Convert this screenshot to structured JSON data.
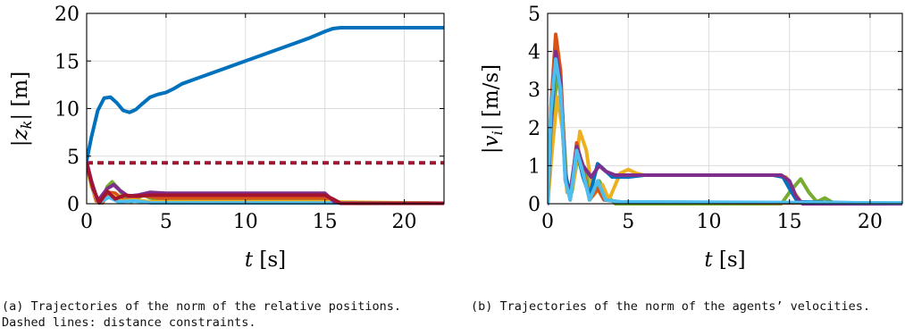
{
  "colors": {
    "blue": "#0072BD",
    "orange": "#D95319",
    "yellow": "#EDB120",
    "purple": "#7E2F8E",
    "green": "#77AC30",
    "cyan": "#4DBEEE",
    "red": "#A2142F",
    "grid": "#dcdcdc"
  },
  "captions": {
    "a": "(a) Trajectories of the norm of the relative positions. Dashed lines: distance constraints.",
    "b": "(b) Trajectories of the norm of the agents’ velocities."
  },
  "chart_data": [
    {
      "type": "line",
      "title": "",
      "xlabel": "t [s]",
      "ylabel": "|z_k| [m]",
      "xlim": [
        0,
        22.5
      ],
      "ylim": [
        0,
        20
      ],
      "xticks": [
        0,
        5,
        10,
        15,
        20
      ],
      "yticks": [
        0,
        5,
        10,
        15,
        20
      ],
      "grid": true,
      "series": [
        {
          "color": "#0072BD",
          "width": 4,
          "points": [
            [
              0,
              4.5
            ],
            [
              0.3,
              7
            ],
            [
              0.7,
              9.8
            ],
            [
              1.1,
              11.1
            ],
            [
              1.5,
              11.2
            ],
            [
              1.9,
              10.6
            ],
            [
              2.3,
              9.8
            ],
            [
              2.7,
              9.6
            ],
            [
              3.1,
              9.9
            ],
            [
              3.5,
              10.5
            ],
            [
              4,
              11.2
            ],
            [
              4.5,
              11.5
            ],
            [
              5,
              11.7
            ],
            [
              5.5,
              12.1
            ],
            [
              6,
              12.6
            ],
            [
              7,
              13.2
            ],
            [
              8,
              13.8
            ],
            [
              9,
              14.4
            ],
            [
              10,
              15
            ],
            [
              11,
              15.6
            ],
            [
              12,
              16.2
            ],
            [
              13,
              16.8
            ],
            [
              14,
              17.4
            ],
            [
              15,
              18.1
            ],
            [
              15.5,
              18.4
            ],
            [
              16,
              18.5
            ],
            [
              22.5,
              18.5
            ]
          ]
        },
        {
          "color": "#A2142F",
          "width": 4,
          "dash": true,
          "points": [
            [
              0,
              4.3
            ],
            [
              22.5,
              4.3
            ]
          ]
        },
        {
          "color": "#77AC30",
          "width": 4,
          "points": [
            [
              0,
              4.3
            ],
            [
              0.3,
              2.2
            ],
            [
              0.6,
              0.5
            ],
            [
              0.9,
              0.1
            ],
            [
              1.3,
              1.8
            ],
            [
              1.6,
              2.3
            ],
            [
              2,
              1.6
            ],
            [
              2.4,
              0.6
            ],
            [
              2.8,
              0.2
            ],
            [
              3.2,
              0.6
            ],
            [
              3.6,
              0.9
            ],
            [
              4,
              0.6
            ],
            [
              4.5,
              0.4
            ],
            [
              15,
              0.4
            ],
            [
              15.5,
              0.1
            ],
            [
              22.5,
              0.05
            ]
          ]
        },
        {
          "color": "#D95319",
          "width": 4,
          "points": [
            [
              0,
              4.1
            ],
            [
              0.3,
              2
            ],
            [
              0.6,
              0.3
            ],
            [
              1,
              0.1
            ],
            [
              1.4,
              1.2
            ],
            [
              1.8,
              1.1
            ],
            [
              2.3,
              0.4
            ],
            [
              3,
              0.6
            ],
            [
              3.5,
              0.9
            ],
            [
              4.5,
              0.6
            ],
            [
              15,
              0.6
            ],
            [
              15.5,
              0.1
            ],
            [
              22.5,
              0.05
            ]
          ]
        },
        {
          "color": "#EDB120",
          "width": 4,
          "points": [
            [
              0,
              4
            ],
            [
              0.3,
              1.8
            ],
            [
              0.7,
              0.2
            ],
            [
              1.2,
              0.5
            ],
            [
              1.6,
              0.9
            ],
            [
              2.2,
              0.3
            ],
            [
              3,
              0.4
            ],
            [
              4,
              0.2
            ],
            [
              15,
              0.2
            ],
            [
              22.5,
              0.05
            ]
          ]
        },
        {
          "color": "#4DBEEE",
          "width": 4,
          "points": [
            [
              0,
              4.2
            ],
            [
              0.4,
              1.5
            ],
            [
              0.8,
              0.1
            ],
            [
              1.4,
              0.7
            ],
            [
              2,
              0.2
            ],
            [
              3,
              0.3
            ],
            [
              4,
              0.1
            ],
            [
              22.5,
              0.05
            ]
          ]
        },
        {
          "color": "#7E2F8E",
          "width": 4,
          "points": [
            [
              0,
              4.4
            ],
            [
              0.3,
              2.4
            ],
            [
              0.7,
              0.3
            ],
            [
              1.3,
              1.6
            ],
            [
              1.7,
              2
            ],
            [
              2.1,
              1.4
            ],
            [
              2.6,
              0.8
            ],
            [
              3.2,
              0.9
            ],
            [
              4,
              1.2
            ],
            [
              5,
              1.1
            ],
            [
              15,
              1.1
            ],
            [
              15.6,
              0.2
            ],
            [
              16,
              0.05
            ],
            [
              22.5,
              0.05
            ]
          ]
        },
        {
          "color": "#A2142F",
          "width": 4,
          "points": [
            [
              0,
              4.2
            ],
            [
              0.4,
              1.6
            ],
            [
              0.8,
              0.1
            ],
            [
              1.3,
              1.3
            ],
            [
              1.8,
              0.5
            ],
            [
              2.4,
              0.9
            ],
            [
              3,
              0.8
            ],
            [
              4,
              0.9
            ],
            [
              15,
              0.9
            ],
            [
              15.5,
              0.5
            ],
            [
              16,
              0.05
            ],
            [
              22.5,
              0.05
            ]
          ]
        }
      ]
    },
    {
      "type": "line",
      "title": "",
      "xlabel": "t [s]",
      "ylabel": "|v_i| [m/s]",
      "xlim": [
        0,
        22
      ],
      "ylim": [
        0,
        5
      ],
      "xticks": [
        0,
        5,
        10,
        15,
        20
      ],
      "yticks": [
        0,
        1,
        2,
        3,
        4,
        5
      ],
      "grid": true,
      "series": [
        {
          "color": "#77AC30",
          "width": 4,
          "points": [
            [
              0,
              0
            ],
            [
              0.3,
              2
            ],
            [
              0.6,
              3.5
            ],
            [
              0.9,
              2.5
            ],
            [
              1.2,
              0.4
            ],
            [
              1.5,
              0.3
            ],
            [
              1.9,
              1.3
            ],
            [
              2.3,
              0.9
            ],
            [
              2.7,
              0.2
            ],
            [
              3.2,
              0.6
            ],
            [
              3.7,
              0.2
            ],
            [
              4.2,
              0
            ],
            [
              14.5,
              0
            ],
            [
              15,
              0.3
            ],
            [
              15.7,
              0.65
            ],
            [
              16.2,
              0.3
            ],
            [
              16.7,
              0.05
            ],
            [
              17.2,
              0.15
            ],
            [
              17.8,
              0
            ],
            [
              22,
              0
            ]
          ]
        },
        {
          "color": "#EDB120",
          "width": 4,
          "points": [
            [
              0,
              0
            ],
            [
              0.3,
              1.5
            ],
            [
              0.6,
              2.8
            ],
            [
              0.9,
              2
            ],
            [
              1.2,
              0.3
            ],
            [
              1.6,
              0.5
            ],
            [
              2,
              1.9
            ],
            [
              2.4,
              1.4
            ],
            [
              2.8,
              0.2
            ],
            [
              3.4,
              0.5
            ],
            [
              3.8,
              0.1
            ],
            [
              4.5,
              0.8
            ],
            [
              5,
              0.9
            ],
            [
              5.5,
              0.8
            ],
            [
              6,
              0.75
            ],
            [
              14.2,
              0.75
            ],
            [
              14.8,
              0.7
            ],
            [
              15.3,
              0.3
            ],
            [
              15.8,
              0
            ],
            [
              22,
              0
            ]
          ]
        },
        {
          "color": "#D95319",
          "width": 4,
          "points": [
            [
              0,
              0
            ],
            [
              0.2,
              2.5
            ],
            [
              0.5,
              4.45
            ],
            [
              0.8,
              3.5
            ],
            [
              1.1,
              0.8
            ],
            [
              1.4,
              0.1
            ],
            [
              1.8,
              1.6
            ],
            [
              2.2,
              0.9
            ],
            [
              2.6,
              0.1
            ],
            [
              3.1,
              0.4
            ],
            [
              3.5,
              0.1
            ],
            [
              4.5,
              0.05
            ],
            [
              22,
              0
            ]
          ]
        },
        {
          "color": "#0072BD",
          "width": 4,
          "points": [
            [
              0,
              0
            ],
            [
              0.2,
              2
            ],
            [
              0.5,
              3.8
            ],
            [
              0.8,
              3
            ],
            [
              1.1,
              0.8
            ],
            [
              1.4,
              0.2
            ],
            [
              1.8,
              1.4
            ],
            [
              2.2,
              0.7
            ],
            [
              2.6,
              0.2
            ],
            [
              3.1,
              1.05
            ],
            [
              3.5,
              0.9
            ],
            [
              4,
              0.7
            ],
            [
              5,
              0.7
            ],
            [
              6,
              0.75
            ],
            [
              14,
              0.75
            ],
            [
              14.6,
              0.7
            ],
            [
              15,
              0.4
            ],
            [
              15.5,
              0.05
            ],
            [
              22,
              0
            ]
          ]
        },
        {
          "color": "#7E2F8E",
          "width": 4,
          "points": [
            [
              0,
              0
            ],
            [
              0.2,
              2.2
            ],
            [
              0.5,
              4
            ],
            [
              0.8,
              3.2
            ],
            [
              1.1,
              0.6
            ],
            [
              1.4,
              0.3
            ],
            [
              1.8,
              1.5
            ],
            [
              2.2,
              1
            ],
            [
              2.7,
              0.7
            ],
            [
              3.2,
              1
            ],
            [
              3.6,
              0.85
            ],
            [
              4.2,
              0.75
            ],
            [
              14.5,
              0.75
            ],
            [
              15,
              0.6
            ],
            [
              15.4,
              0.2
            ],
            [
              15.8,
              0
            ],
            [
              22,
              0
            ]
          ]
        },
        {
          "color": "#4DBEEE",
          "width": 4,
          "points": [
            [
              0,
              0
            ],
            [
              0.2,
              2.4
            ],
            [
              0.5,
              3.8
            ],
            [
              0.8,
              3
            ],
            [
              1.1,
              0.6
            ],
            [
              1.4,
              0.1
            ],
            [
              1.8,
              1.4
            ],
            [
              2.2,
              0.8
            ],
            [
              2.6,
              0.1
            ],
            [
              3.1,
              0.6
            ],
            [
              3.6,
              0.1
            ],
            [
              4.5,
              0.05
            ],
            [
              22,
              0.02
            ]
          ]
        }
      ]
    }
  ]
}
